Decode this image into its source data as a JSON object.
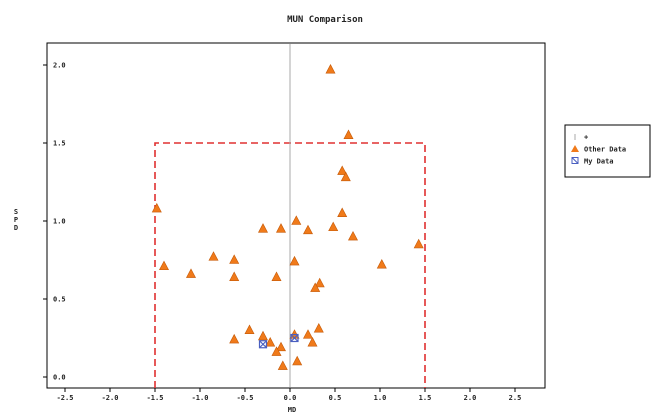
{
  "chart_data": {
    "type": "scatter",
    "title": "MUN Comparison",
    "xlabel": "MD",
    "ylabel": "SPD",
    "xlim": [
      -2.5,
      2.5
    ],
    "ylim": [
      0.0,
      2.0
    ],
    "xticks": [
      -2.5,
      -2.0,
      -1.5,
      -1.0,
      -0.5,
      0.0,
      0.5,
      1.0,
      1.5,
      2.0,
      2.5
    ],
    "xtick_labels": [
      "-2.5",
      "-2.0",
      "-1.5",
      "-1.0",
      "-0.5",
      "0.0",
      "0.5",
      "1.0",
      "1.5",
      "2.0",
      "2.5"
    ],
    "yticks": [
      0.0,
      0.5,
      1.0,
      1.5,
      2.0
    ],
    "ytick_labels": [
      "0.0",
      "0.5",
      "1.0",
      "1.5",
      "2.0"
    ],
    "grid": false,
    "legend_position": "right",
    "reference_box": {
      "x": [
        -1.5,
        1.5
      ],
      "y": [
        0.0,
        1.5
      ],
      "color": "#e03030"
    },
    "series": [
      {
        "name": "+",
        "marker": "vline",
        "color": "#aaaaaa",
        "x": [
          0.0
        ]
      },
      {
        "name": "Other Data",
        "marker": "triangle",
        "color": "#f07a1a",
        "x": [
          0.45,
          0.65,
          0.58,
          0.62,
          -1.48,
          0.58,
          -0.3,
          -0.1,
          0.07,
          0.48,
          0.2,
          0.7,
          1.43,
          -0.85,
          -0.62,
          -1.4,
          -1.1,
          -0.62,
          -0.15,
          0.05,
          0.33,
          0.28,
          1.02,
          -0.45,
          -0.62,
          -0.3,
          0.32,
          -0.22,
          0.05,
          -0.1,
          0.2,
          0.25,
          -0.15,
          0.08,
          -0.08
        ],
        "y": [
          1.97,
          1.55,
          1.32,
          1.28,
          1.08,
          1.05,
          0.95,
          0.95,
          1.0,
          0.96,
          0.94,
          0.9,
          0.85,
          0.77,
          0.75,
          0.71,
          0.66,
          0.64,
          0.64,
          0.74,
          0.6,
          0.57,
          0.72,
          0.3,
          0.24,
          0.26,
          0.31,
          0.22,
          0.27,
          0.19,
          0.27,
          0.22,
          0.16,
          0.1,
          0.07
        ]
      },
      {
        "name": "My Data",
        "marker": "x",
        "color": "#4a5fc0",
        "x": [
          -0.3,
          0.05
        ],
        "y": [
          0.21,
          0.25
        ]
      }
    ]
  }
}
